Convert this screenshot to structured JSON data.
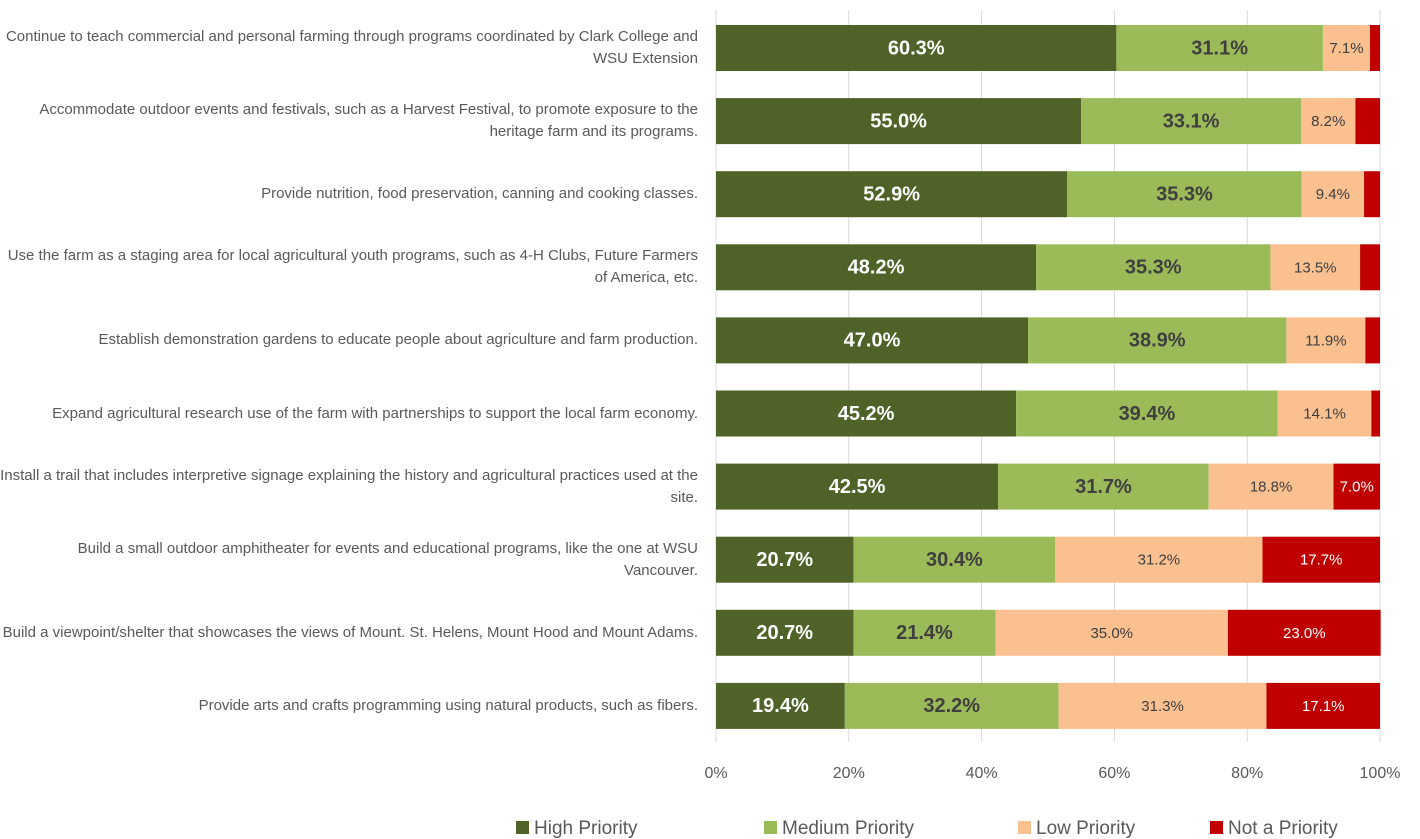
{
  "chart_data": {
    "type": "stacked-bar-horizontal",
    "categories": [
      "Continue to teach commercial and personal farming through programs coordinated by Clark College and WSU Extension",
      "Accommodate outdoor events and festivals, such as a Harvest Festival, to promote exposure to the heritage farm and its programs.",
      "Provide nutrition, food preservation, canning and cooking classes.",
      "Use the farm as a staging area for local agricultural youth programs, such as 4-H Clubs, Future Farmers of America, etc.",
      "Establish demonstration gardens to educate people about agriculture and farm production.",
      "Expand agricultural research use of the farm with partnerships to support the local farm economy.",
      "Install a trail that includes interpretive signage explaining the history and agricultural practices used at the site.",
      "Build a small outdoor amphitheater for events and educational programs, like the one at WSU Vancouver.",
      "Build a viewpoint/shelter that showcases the views of Mount. St. Helens, Mount Hood and Mount Adams.",
      "Provide arts and crafts programming using natural products, such as fibers."
    ],
    "series": [
      {
        "name": "High Priority",
        "color": "#4f6228",
        "values": [
          60.3,
          55.0,
          52.9,
          48.2,
          47.0,
          45.2,
          42.5,
          20.7,
          20.7,
          19.4
        ],
        "value_labels": [
          "60.3%",
          "55.0%",
          "52.9%",
          "48.2%",
          "47.0%",
          "45.2%",
          "42.5%",
          "20.7%",
          "20.7%",
          "19.4%"
        ]
      },
      {
        "name": "Medium Priority",
        "color": "#9bbb59",
        "values": [
          31.1,
          33.1,
          35.3,
          35.3,
          38.9,
          39.4,
          31.7,
          30.4,
          21.4,
          32.2
        ],
        "value_labels": [
          "31.1%",
          "33.1%",
          "35.3%",
          "35.3%",
          "38.9%",
          "39.4%",
          "31.7%",
          "30.4%",
          "21.4%",
          "32.2%"
        ]
      },
      {
        "name": "Low Priority",
        "color": "#fac090",
        "values": [
          7.1,
          8.2,
          9.4,
          13.5,
          11.9,
          14.1,
          18.8,
          31.2,
          35.0,
          31.3
        ],
        "value_labels": [
          "7.1%",
          "8.2%",
          "9.4%",
          "13.5%",
          "11.9%",
          "14.1%",
          "18.8%",
          "31.2%",
          "35.0%",
          "31.3%"
        ]
      },
      {
        "name": "Not a Priority",
        "color": "#c00000",
        "values": [
          1.5,
          3.7,
          2.4,
          3.0,
          2.2,
          1.3,
          7.0,
          17.7,
          23.0,
          17.1
        ],
        "value_labels": [
          null,
          null,
          null,
          null,
          null,
          null,
          "7.0%",
          "17.7%",
          "23.0%",
          "17.1%"
        ]
      }
    ],
    "xlim": [
      0,
      100
    ],
    "xticks": [
      {
        "value": 0,
        "label": "0%"
      },
      {
        "value": 20,
        "label": "20%"
      },
      {
        "value": 40,
        "label": "40%"
      },
      {
        "value": 60,
        "label": "60%"
      },
      {
        "value": 80,
        "label": "80%"
      },
      {
        "value": 100,
        "label": "100%"
      }
    ],
    "grid": true,
    "legend": "bottom"
  }
}
